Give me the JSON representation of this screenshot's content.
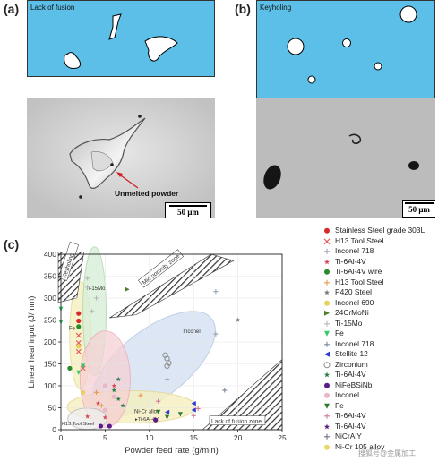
{
  "panel_a": {
    "label": "(a)",
    "schematic_title": "Lack of fusion",
    "annotation": "Unmelted powder",
    "scale_bar": "50 μm"
  },
  "panel_b": {
    "label": "(b)",
    "schematic_title": "Keyholing",
    "scale_bar": "50 μm"
  },
  "panel_c": {
    "label": "(c)",
    "chart_data": {
      "type": "scatter",
      "xlabel": "Powder feed rate (g/min)",
      "ylabel": "Linear heat input (J/mm)",
      "xlim": [
        0,
        25
      ],
      "ylim": [
        0,
        400
      ],
      "x_ticks": [
        0,
        5,
        10,
        15,
        20,
        25
      ],
      "y_ticks": [
        0,
        50,
        100,
        150,
        200,
        250,
        300,
        350,
        400
      ],
      "regions": [
        {
          "label": "Keyholing"
        },
        {
          "label": "Mid porosity zone"
        },
        {
          "label": "Lack of fusion zone"
        }
      ],
      "annotations": [
        "Ti-15Mo",
        "Fe",
        "Inconel",
        "Ni-Cr alloy",
        "H13 Tool Steel",
        "Ti-6Al-4V"
      ],
      "legend": [
        {
          "name": "Stainless Steel grade 303L",
          "symbol": "circle",
          "color": "#d42a2a"
        },
        {
          "name": "H13 Tool Steel",
          "symbol": "x",
          "color": "#e35a5a"
        },
        {
          "name": "Inconel 718",
          "symbol": "plus",
          "color": "#9aa7b6"
        },
        {
          "name": "Ti-6Al-4V",
          "symbol": "star",
          "color": "#d44a5a"
        },
        {
          "name": "Ti-6Al-4V wire",
          "symbol": "circle",
          "color": "#2b8a2b"
        },
        {
          "name": "H13 Tool Steel",
          "symbol": "plus",
          "color": "#e89a4a"
        },
        {
          "name": "P420 Steel",
          "symbol": "star",
          "color": "#7a7a7a"
        },
        {
          "name": "Inconel 690",
          "symbol": "circle",
          "color": "#e7d25a"
        },
        {
          "name": "24CrMoNi",
          "symbol": "tri-right",
          "color": "#4f7f2a"
        },
        {
          "name": "Ti-15Mo",
          "symbol": "plus",
          "color": "#b8b8b8"
        },
        {
          "name": "Fe",
          "symbol": "tri-down",
          "color": "#3ac86a"
        },
        {
          "name": "Inconel 718",
          "symbol": "plus",
          "color": "#7a8a9a"
        },
        {
          "name": "Stellite 12",
          "symbol": "tri-left",
          "color": "#2a3ad4"
        },
        {
          "name": "Zirconium",
          "symbol": "circle-open",
          "color": "#8a8a8a"
        },
        {
          "name": "Ti-6Al-4V",
          "symbol": "star",
          "color": "#2b7a4a"
        },
        {
          "name": "NiFeBSiNb",
          "symbol": "circle",
          "color": "#5a1a8a"
        },
        {
          "name": "Inconel",
          "symbol": "circle",
          "color": "#e8b8c8"
        },
        {
          "name": "Fe",
          "symbol": "tri-down",
          "color": "#2e7a2e"
        },
        {
          "name": "Ti-6Al-4V",
          "symbol": "plus",
          "color": "#d47a9a"
        },
        {
          "name": "Ti-6Al-4V",
          "symbol": "star",
          "color": "#5a1a7a"
        },
        {
          "name": "NiCrAlY",
          "symbol": "plus",
          "color": "#7a6a8a"
        },
        {
          "name": "Ni-Cr 105 alloy",
          "symbol": "circle",
          "color": "#e8d86a"
        }
      ],
      "series": [
        {
          "name": "Stainless Steel grade 303L",
          "points": [
            [
              2,
              265
            ],
            [
              2,
              248
            ]
          ]
        },
        {
          "name": "H13 Tool Steel",
          "points": [
            [
              2,
              215
            ],
            [
              2,
              198
            ],
            [
              2,
              178
            ],
            [
              2.5,
              140
            ]
          ]
        },
        {
          "name": "Inconel 718",
          "points": [
            [
              17.5,
              315
            ],
            [
              17.5,
              218
            ],
            [
              12,
              115
            ]
          ]
        },
        {
          "name": "Ti-6Al-4V",
          "points": [
            [
              4.2,
              60
            ],
            [
              5,
              28
            ],
            [
              3,
              30
            ],
            [
              6,
              100
            ]
          ]
        },
        {
          "name": "Ti-6Al-4V wire",
          "points": [
            [
              2,
              235
            ],
            [
              1,
              140
            ]
          ]
        },
        {
          "name": "H13 Tool Steel",
          "points": [
            [
              4,
              85
            ],
            [
              9,
              78
            ],
            [
              4.6,
              55
            ]
          ]
        },
        {
          "name": "P420 Steel",
          "points": [
            [
              20,
              250
            ]
          ]
        },
        {
          "name": "Inconel 690",
          "points": [
            [
              2,
              190
            ],
            [
              2.5,
              85
            ]
          ]
        },
        {
          "name": "24CrMoNi",
          "points": [
            [
              7.5,
              320
            ]
          ]
        },
        {
          "name": "Ti-15Mo",
          "points": [
            [
              3,
              345
            ],
            [
              3,
              325
            ],
            [
              4,
              300
            ],
            [
              3.5,
              270
            ]
          ]
        },
        {
          "name": "Fe",
          "points": [
            [
              0,
              275
            ],
            [
              0,
              245
            ],
            [
              2.5,
              145
            ],
            [
              2,
              130
            ]
          ]
        },
        {
          "name": "Stellite 12",
          "points": [
            [
              18.5,
              90
            ]
          ]
        },
        {
          "name": "Zirconium",
          "points": [
            [
              15,
              60
            ],
            [
              15,
              45
            ],
            [
              12,
              40
            ]
          ]
        },
        {
          "name": "NiFeBSiNb",
          "points": [
            [
              11.8,
              170
            ],
            [
              12,
              162
            ],
            [
              12.2,
              152
            ],
            [
              12,
              145
            ]
          ]
        },
        {
          "name": "Inconel",
          "points": [
            [
              6.5,
              115
            ],
            [
              6,
              90
            ],
            [
              6.5,
              70
            ],
            [
              7,
              55
            ]
          ]
        },
        {
          "name": "Fe",
          "points": [
            [
              4.5,
              8
            ],
            [
              5.5,
              8
            ],
            [
              10.7,
              22
            ]
          ]
        },
        {
          "name": "Ti-6Al-4V",
          "points": [
            [
              5,
              100
            ],
            [
              6,
              75
            ],
            [
              5,
              45
            ]
          ]
        },
        {
          "name": "NiCrAlY",
          "points": [
            [
              11,
              40
            ],
            [
              12,
              28
            ],
            [
              13.5,
              35
            ]
          ]
        },
        {
          "name": "Ni-Cr 105 alloy",
          "points": [
            [
              15.5,
              48
            ],
            [
              15,
              32
            ],
            [
              11,
              65
            ]
          ]
        }
      ]
    }
  },
  "watermark": "搜狐号@金属加工"
}
